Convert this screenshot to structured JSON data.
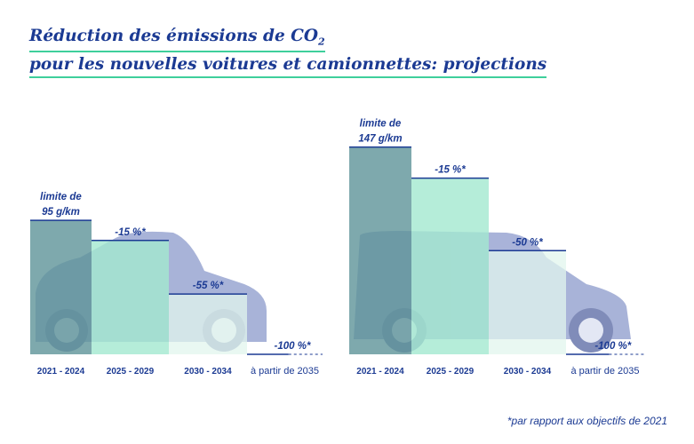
{
  "title": {
    "line1": "Réduction des émissions de CO",
    "line1_sub": "2",
    "line2": "pour les nouvelles voitures et camionnettes: projections"
  },
  "footnote": "*par rapport aux objectifs de 2021",
  "colors": {
    "text": "#1b3a93",
    "accent": "#3ecf9b",
    "bar1": "#5e9499",
    "bar2": "#a3e9cf",
    "bar3": "#e2f6ee",
    "vehicle": "#8e9bc9"
  },
  "chart_data": [
    {
      "type": "bar",
      "vehicle": "car-icon",
      "unit": "g/km",
      "categories": [
        "2021 - 2024",
        "2025 - 2029",
        "2030 - 2034",
        "à partir de 2035"
      ],
      "values": [
        95,
        80.75,
        42.75,
        0
      ],
      "labels": [
        [
          "limite de",
          "95 g/km"
        ],
        [
          "-15 %*"
        ],
        [
          "-55 %*"
        ],
        [
          "-100 %*"
        ]
      ]
    },
    {
      "type": "bar",
      "vehicle": "van-icon",
      "unit": "g/km",
      "categories": [
        "2021 - 2024",
        "2025 - 2029",
        "2030 - 2034",
        "à partir de 2035"
      ],
      "values": [
        147,
        124.95,
        73.5,
        0
      ],
      "labels": [
        [
          "limite de",
          "147 g/km"
        ],
        [
          "-15 %*"
        ],
        [
          "-50 %*"
        ],
        [
          "-100 %*"
        ]
      ]
    }
  ]
}
